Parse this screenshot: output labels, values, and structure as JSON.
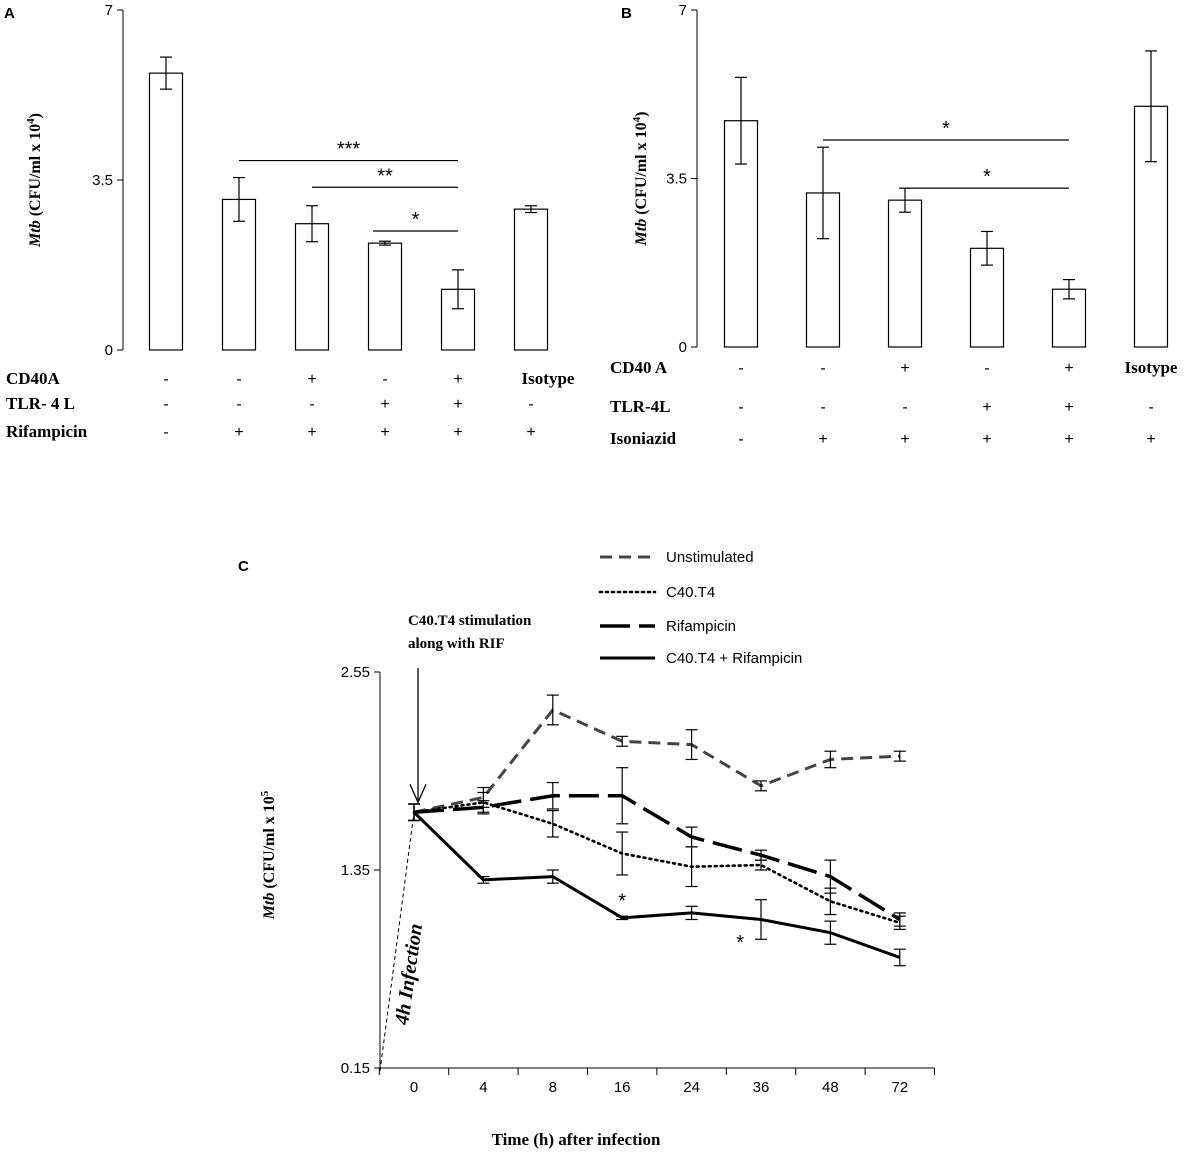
{
  "chart_data": [
    {
      "id": "A",
      "type": "bar",
      "panel_label": "A",
      "ylabel_italic": "Mtb",
      "ylabel_rest": " (CFU/ml x 10",
      "ylabel_exp": "4",
      "ylabel_close": ")",
      "ylim": [
        0,
        7
      ],
      "yticks": [
        "0",
        "3.5",
        "7"
      ],
      "values": [
        5.7,
        3.1,
        2.6,
        2.2,
        1.25,
        2.9
      ],
      "errors": [
        0.33,
        0.45,
        0.37,
        0.04,
        0.4,
        0.07
      ],
      "conditions": [
        {
          "label": "CD40A",
          "marks": [
            "-",
            "-",
            "+",
            "-",
            "+",
            "Isotype"
          ]
        },
        {
          "label": "TLR- 4 L",
          "marks": [
            "-",
            "-",
            "-",
            "+",
            "+",
            "-"
          ]
        },
        {
          "label": "Rifampicin",
          "marks": [
            "-",
            "+",
            "+",
            "+",
            "+",
            "+"
          ]
        }
      ],
      "significance": [
        {
          "from": 1,
          "to": 4,
          "label": "***",
          "y": 3.9
        },
        {
          "from": 2,
          "to": 4,
          "label": "**",
          "y": 3.35
        },
        {
          "from": 3,
          "to": 4,
          "label": "*",
          "y": 2.45
        }
      ]
    },
    {
      "id": "B",
      "type": "bar",
      "panel_label": "B",
      "ylabel_italic": "Mtb",
      "ylabel_rest": " (CFU/ml x 10",
      "ylabel_exp": "4",
      "ylabel_close": ")",
      "ylim": [
        0,
        7
      ],
      "yticks": [
        "0",
        "3.5",
        "7"
      ],
      "values": [
        4.7,
        3.2,
        3.05,
        2.05,
        1.2,
        5.0
      ],
      "errors": [
        0.9,
        0.95,
        0.25,
        0.35,
        0.2,
        1.15
      ],
      "conditions": [
        {
          "label": "CD40 A",
          "marks": [
            "-",
            "-",
            "+",
            "-",
            "+",
            "Isotype"
          ]
        },
        {
          "label": "TLR-4L",
          "marks": [
            "-",
            "-",
            "-",
            "+",
            "+",
            "-"
          ]
        },
        {
          "label": "Isoniazid",
          "marks": [
            "-",
            "+",
            "+",
            "+",
            "+",
            "+"
          ]
        }
      ],
      "significance": [
        {
          "from": 1,
          "to": 4,
          "label": "*",
          "y": 4.3
        },
        {
          "from": 2,
          "to": 4,
          "label": "*",
          "y": 3.3
        }
      ]
    },
    {
      "id": "C",
      "type": "line",
      "panel_label": "C",
      "ylabel_italic": "Mtb",
      "ylabel_rest": " (CFU/ml x 10",
      "ylabel_exp": "5",
      "ylabel_close": "",
      "xlabel": "Time (h) after infection",
      "ylim": [
        0.15,
        2.55
      ],
      "yticks": [
        "0.15",
        "1.35",
        "2.55"
      ],
      "categories": [
        "0",
        "4",
        "8",
        "16",
        "24",
        "36",
        "48",
        "72"
      ],
      "annotation_lines": [
        "C40.T4 stimulation",
        "along with RIF"
      ],
      "infection_label": "4h Infection",
      "series": [
        {
          "name": "Unstimulated",
          "style": "dashed",
          "values": [
            1.7,
            1.79,
            2.32,
            2.13,
            2.11,
            1.86,
            2.02,
            2.04
          ],
          "errors": [
            0.05,
            0.06,
            0.09,
            0.03,
            0.09,
            0.03,
            0.05,
            0.03
          ]
        },
        {
          "name": "C40.T4",
          "style": "dotted",
          "values": [
            1.7,
            1.76,
            1.63,
            1.45,
            1.37,
            1.38,
            1.16,
            1.03
          ],
          "errors": [
            0.05,
            0.06,
            0.08,
            0.13,
            0.12,
            0.03,
            0.08,
            0.04
          ]
        },
        {
          "name": "Rifampicin",
          "style": "longdash",
          "values": [
            1.7,
            1.73,
            1.8,
            1.8,
            1.55,
            1.44,
            1.31,
            1.05
          ],
          "errors": [
            0.05,
            0.04,
            0.08,
            0.17,
            0.06,
            0.03,
            0.1,
            0.04
          ]
        },
        {
          "name": "C40.T4 + Rifampicin",
          "style": "solid",
          "values": [
            1.7,
            1.29,
            1.31,
            1.06,
            1.09,
            1.05,
            0.97,
            0.82
          ],
          "errors": [
            0.05,
            0.02,
            0.04,
            0.01,
            0.04,
            0.12,
            0.07,
            0.05
          ]
        }
      ],
      "stars": [
        {
          "label": "*",
          "x_index": 3,
          "y": 1.17
        },
        {
          "label": "*",
          "x_index": 4.7,
          "y": 0.92
        }
      ],
      "legend_position": "top-right"
    }
  ]
}
